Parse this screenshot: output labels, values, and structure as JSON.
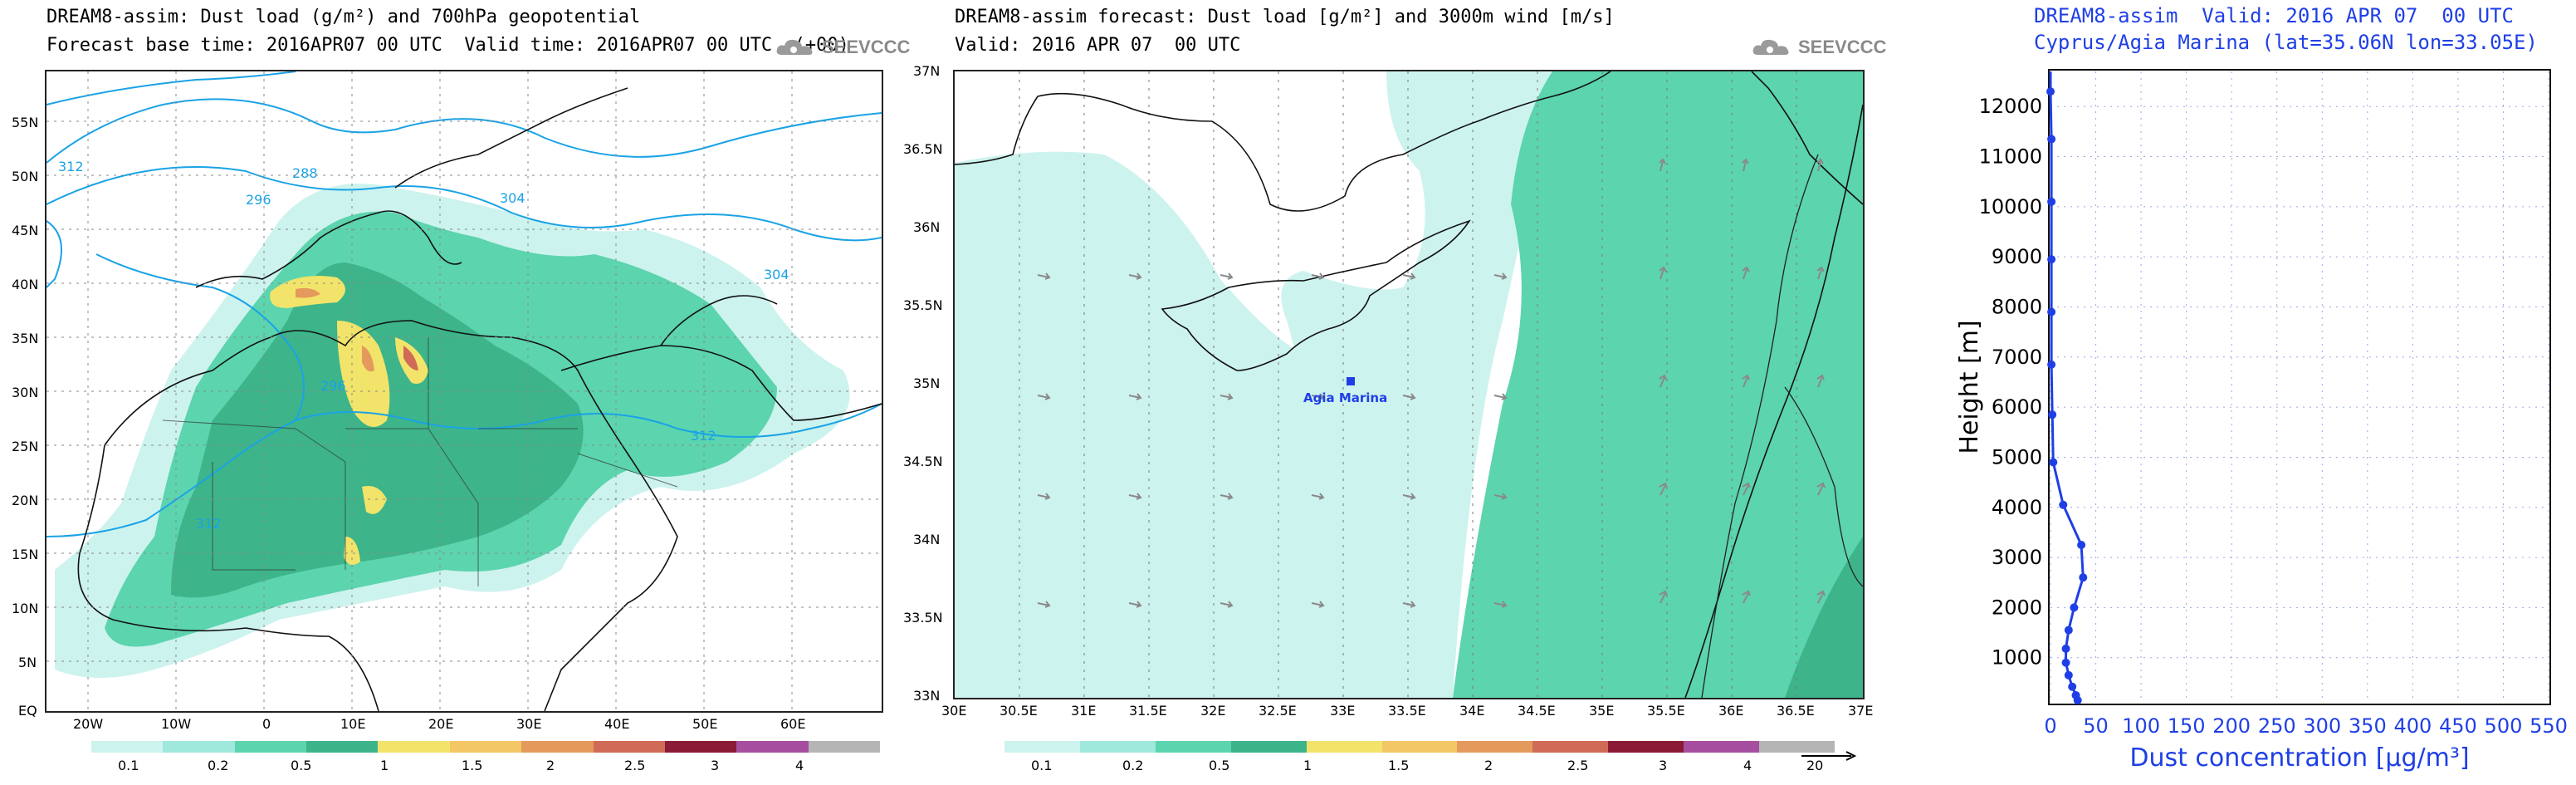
{
  "colorbar": {
    "labels": [
      "0.1",
      "0.2",
      "0.5",
      "1",
      "1.5",
      "2",
      "2.5",
      "3",
      "4"
    ],
    "colors": [
      "#cdf3ee",
      "#9fe8dc",
      "#5cd4ae",
      "#3db48a",
      "#f2e46a",
      "#f3c766",
      "#e39a5c",
      "#d06b57",
      "#8a1a35",
      "#a64ea0",
      "#b5b5b5"
    ]
  },
  "logo": {
    "text": "SEEVCCC"
  },
  "map1": {
    "title1": "DREAM8-assim: Dust load (g/m²) and 700hPa geopotential",
    "title2": "Forecast base time: 2016APR07 00 UTC  Valid time: 2016APR07 00 UTC  (+00)",
    "lat_labels": [
      "55N",
      "50N",
      "45N",
      "40N",
      "35N",
      "30N",
      "25N",
      "20N",
      "15N",
      "10N",
      "5N",
      "EQ"
    ],
    "lon_labels": [
      "20W",
      "10W",
      "0",
      "10E",
      "20E",
      "30E",
      "40E",
      "50E",
      "60E"
    ],
    "contour_labels": [
      "312",
      "288",
      "296",
      "304",
      "304",
      "296",
      "312",
      "312"
    ]
  },
  "map2": {
    "title1": "DREAM8-assim forecast: Dust load [g/m²] and 3000m wind [m/s]",
    "title2": "Valid: 2016 APR 07  00 UTC",
    "lat_labels": [
      "37N",
      "36.5N",
      "36N",
      "35.5N",
      "35N",
      "34.5N",
      "34N",
      "33.5N",
      "33N"
    ],
    "lon_labels": [
      "30E",
      "30.5E",
      "31E",
      "31.5E",
      "32E",
      "32.5E",
      "33E",
      "33.5E",
      "34E",
      "34.5E",
      "35E",
      "35.5E",
      "36E",
      "36.5E",
      "37E"
    ],
    "station_label": "Agia Marina",
    "wind_scale_label": "20"
  },
  "chart_data": {
    "type": "line",
    "title": "DREAM8-assim  Valid: 2016 APR 07  00 UTC",
    "subtitle": "Cyprus/Agia Marina (lat=35.06N lon=33.05E)",
    "xlabel": "Dust concentration [μg/m³]",
    "ylabel": "Height [m]",
    "xlim": [
      0,
      550
    ],
    "ylim": [
      100,
      12700
    ],
    "x_ticks": [
      "0",
      "50",
      "100",
      "150",
      "200",
      "250",
      "300",
      "350",
      "400",
      "450",
      "500",
      "550"
    ],
    "y_ticks": [
      "1000",
      "2000",
      "3000",
      "4000",
      "5000",
      "6000",
      "7000",
      "8000",
      "9000",
      "10000",
      "11000",
      "12000"
    ],
    "series": [
      {
        "name": "Dust concentration",
        "points": [
          {
            "x": 0,
            "y": 12700
          },
          {
            "x": 0,
            "y": 12300
          },
          {
            "x": 1,
            "y": 11350
          },
          {
            "x": 1,
            "y": 10100
          },
          {
            "x": 1,
            "y": 8950
          },
          {
            "x": 1,
            "y": 7900
          },
          {
            "x": 1,
            "y": 6850
          },
          {
            "x": 2,
            "y": 5850
          },
          {
            "x": 3,
            "y": 4900
          },
          {
            "x": 14,
            "y": 4050
          },
          {
            "x": 34,
            "y": 3250
          },
          {
            "x": 36,
            "y": 2600
          },
          {
            "x": 26,
            "y": 2000
          },
          {
            "x": 20,
            "y": 1550
          },
          {
            "x": 17,
            "y": 1180
          },
          {
            "x": 17,
            "y": 900
          },
          {
            "x": 20,
            "y": 650
          },
          {
            "x": 24,
            "y": 420
          },
          {
            "x": 28,
            "y": 250
          },
          {
            "x": 30,
            "y": 150
          }
        ]
      }
    ]
  }
}
